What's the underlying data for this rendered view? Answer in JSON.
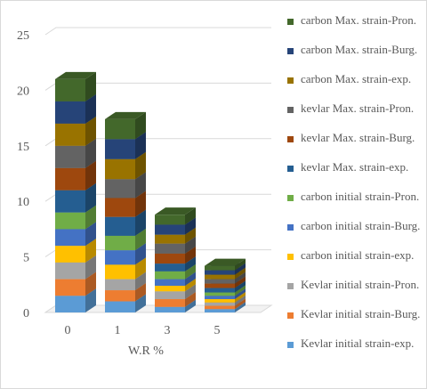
{
  "chart_data": {
    "type": "bar",
    "stacked": true,
    "three_d": true,
    "categories": [
      "0",
      "1",
      "3",
      "5"
    ],
    "xlabel": "W.R %",
    "ylabel": "",
    "ylim": [
      0,
      25
    ],
    "yticks": [
      0,
      5,
      10,
      15,
      20,
      25
    ],
    "grid": true,
    "legend_position": "right",
    "series": [
      {
        "name": "Kevlar initial strain-exp.",
        "color": "#5B9BD5",
        "values": [
          1.5,
          1.0,
          0.5,
          0.3
        ]
      },
      {
        "name": "Kevlar initial strain-Burg.",
        "color": "#ED7D31",
        "values": [
          1.5,
          1.0,
          0.7,
          0.3
        ]
      },
      {
        "name": "Kevlar initial strain-Pron.",
        "color": "#A5A5A5",
        "values": [
          1.5,
          1.0,
          0.7,
          0.3
        ]
      },
      {
        "name": "carbon initial strain-exp.",
        "color": "#FFC000",
        "values": [
          1.5,
          1.3,
          0.5,
          0.3
        ]
      },
      {
        "name": "carbon initial strain-Burg.",
        "color": "#4472C4",
        "values": [
          1.5,
          1.3,
          0.6,
          0.3
        ]
      },
      {
        "name": "carbon initial strain-Pron.",
        "color": "#70AD47",
        "values": [
          1.5,
          1.3,
          0.7,
          0.3
        ]
      },
      {
        "name": "kevlar Max. strain-exp.",
        "color": "#255E91",
        "values": [
          2.0,
          1.7,
          0.7,
          0.4
        ]
      },
      {
        "name": "kevlar Max. strain-Burg.",
        "color": "#9E480E",
        "values": [
          2.0,
          1.7,
          0.9,
          0.4
        ]
      },
      {
        "name": "kevlar Max. strain-Pron.",
        "color": "#636363",
        "values": [
          2.0,
          1.7,
          0.9,
          0.4
        ]
      },
      {
        "name": "carbon Max. strain-exp.",
        "color": "#997300",
        "values": [
          2.0,
          1.8,
          0.8,
          0.4
        ]
      },
      {
        "name": "carbon Max. strain-Burg.",
        "color": "#264478",
        "values": [
          2.0,
          1.8,
          0.9,
          0.4
        ]
      },
      {
        "name": "carbon Max. strain-Pron.",
        "color": "#43682B",
        "values": [
          2.0,
          1.8,
          0.9,
          0.4
        ]
      }
    ]
  }
}
